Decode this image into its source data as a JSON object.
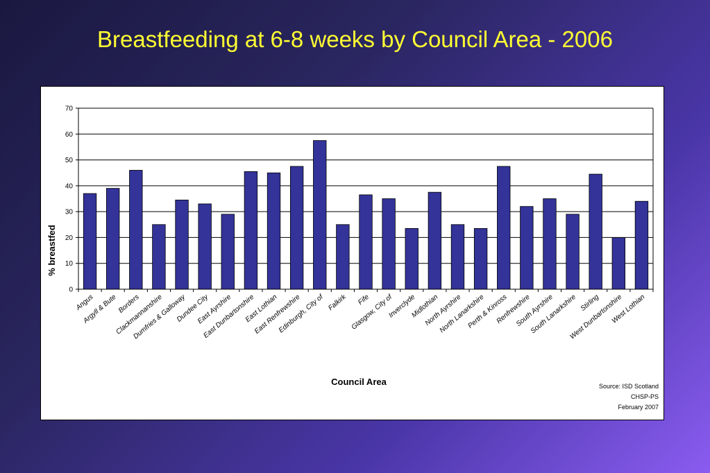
{
  "slide": {
    "title": "Breastfeeding at 6-8 weeks by Council Area - 2006"
  },
  "source": {
    "lines": [
      "Source: ISD Scotland",
      "CHSP-PS",
      "February 2007"
    ]
  },
  "colors": {
    "bar": "#333399",
    "title": "#ffff33"
  },
  "chart_data": {
    "type": "bar",
    "title": "Breastfeeding at 6-8 weeks by Council Area - 2006",
    "xlabel": "Council Area",
    "ylabel": "% breastfed",
    "ylim": [
      0,
      70
    ],
    "yticks": [
      0,
      10,
      20,
      30,
      40,
      50,
      60,
      70
    ],
    "grid": true,
    "legend": "none",
    "categories": [
      "Angus",
      "Argyll & Bute",
      "Borders",
      "Clackmannanshire",
      "Dumfries & Galloway",
      "Dundee City",
      "East Ayrshire",
      "East Dunbartonshire",
      "East Lothian",
      "East Renfrewshire",
      "Edinburgh, City of",
      "Falkirk",
      "Fife",
      "Glasgow, City of",
      "Inverclyde",
      "Midlothian",
      "North Ayrshire",
      "North Lanarkshire",
      "Perth & Kinross",
      "Renfrewshire",
      "South Ayrshire",
      "South Lanarkshire",
      "Stirling",
      "West Dunbartonshire",
      "West Lothian"
    ],
    "values": [
      37,
      39,
      46,
      25,
      34.5,
      33,
      29,
      45.5,
      45,
      47.5,
      57.5,
      25,
      36.5,
      35,
      23.5,
      37.5,
      25,
      23.5,
      47.5,
      32,
      35,
      29,
      44.5,
      20,
      34
    ]
  }
}
